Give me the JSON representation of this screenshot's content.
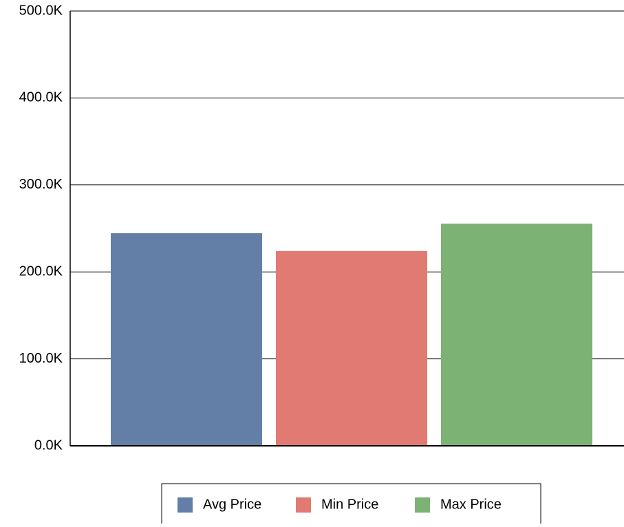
{
  "chart_data": {
    "type": "bar",
    "categories": [
      ""
    ],
    "series": [
      {
        "name": "Avg Price",
        "values": [
          244500
        ],
        "color": "#637fa7"
      },
      {
        "name": "Min Price",
        "values": [
          224000
        ],
        "color": "#e07a73"
      },
      {
        "name": "Max Price",
        "values": [
          255500
        ],
        "color": "#7cb274"
      }
    ],
    "title": "",
    "xlabel": "",
    "ylabel": "",
    "ylim": [
      0,
      500000
    ],
    "y_ticks": [
      0,
      100000,
      200000,
      300000,
      400000,
      500000
    ],
    "y_tick_labels": [
      "0.0K",
      "100.0K",
      "200.0K",
      "300.0K",
      "400.0K",
      "500.0K"
    ],
    "grid": true,
    "legend_position": "bottom"
  }
}
